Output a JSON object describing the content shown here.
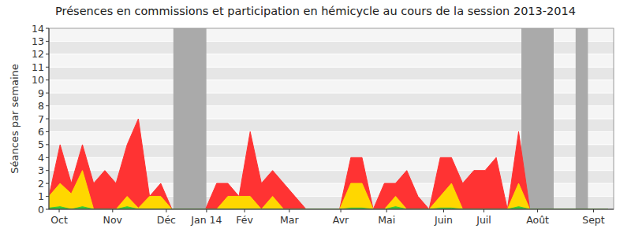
{
  "chart_data": {
    "type": "area",
    "title": "Présences en commissions et participation en hémicycle au cours de la session 2013-2014",
    "y_label": "Séances par semaine",
    "x": [
      0,
      1,
      2,
      3,
      4,
      5,
      6,
      7,
      8,
      9,
      10,
      11,
      12,
      13,
      14,
      15,
      16,
      17,
      18,
      19,
      20,
      21,
      22,
      23,
      24,
      25,
      26,
      27,
      28,
      29,
      30,
      31,
      32,
      33,
      34,
      35,
      36,
      37,
      38,
      39,
      40,
      41,
      42,
      43,
      44,
      45,
      46,
      47,
      48,
      49,
      50
    ],
    "series": [
      {
        "color": "#ff3333",
        "values": [
          1,
          5,
          2,
          5,
          2,
          3,
          2,
          5,
          7,
          1,
          2,
          0,
          0,
          0,
          0,
          2,
          2,
          1,
          6,
          2,
          3,
          2,
          1,
          0,
          0,
          0,
          0,
          4,
          4,
          0,
          2,
          2,
          3,
          1,
          0,
          4,
          4,
          2,
          3,
          3,
          4,
          0,
          6,
          0,
          0,
          0,
          0,
          0,
          0,
          0,
          0
        ]
      },
      {
        "color": "#ffd700",
        "values": [
          1,
          2,
          1.2,
          3,
          0,
          0,
          0,
          1,
          0.1,
          1,
          1,
          0,
          0,
          0,
          0,
          0,
          1,
          1,
          1,
          0,
          1,
          0,
          0,
          0,
          0,
          0,
          0,
          2,
          2,
          0,
          0,
          1,
          0,
          0,
          0,
          1,
          2,
          0,
          0,
          0,
          0,
          0,
          2,
          0,
          0,
          0,
          0,
          0,
          0,
          0,
          0
        ]
      },
      {
        "color": "#33cc33",
        "values": [
          0.1,
          0.2,
          0,
          0.2,
          0,
          0,
          0,
          0.2,
          0,
          0,
          0,
          0,
          0,
          0,
          0,
          0,
          0,
          0,
          0,
          0,
          0,
          0,
          0,
          0,
          0,
          0,
          0,
          0.1,
          0.1,
          0,
          0,
          0.2,
          0,
          0,
          0,
          0.1,
          0.1,
          0,
          0,
          0,
          0,
          0,
          0.2,
          0,
          0,
          0,
          0,
          0,
          0,
          0,
          0
        ]
      }
    ],
    "shaded": [
      [
        11.13,
        14.08
      ],
      [
        42.25,
        45.14
      ],
      [
        47.1,
        48.2
      ]
    ],
    "stacked": false,
    "grid": true,
    "xlim": [
      0,
      50.5
    ],
    "xticks": [
      {
        "value": 0.92,
        "label": "Oct"
      },
      {
        "value": 5.7,
        "label": "Nov"
      },
      {
        "value": 10.5,
        "label": "Déc"
      },
      {
        "value": 14.1,
        "label": "Jan 14"
      },
      {
        "value": 17.5,
        "label": "Fév"
      },
      {
        "value": 21.5,
        "label": "Mar"
      },
      {
        "value": 26.1,
        "label": "Avr"
      },
      {
        "value": 30.2,
        "label": "Mai"
      },
      {
        "value": 35.3,
        "label": "Juin"
      },
      {
        "value": 38.9,
        "label": "Juil"
      },
      {
        "value": 43.7,
        "label": "Août"
      },
      {
        "value": 48.7,
        "label": "Sept"
      }
    ],
    "ylim": [
      0,
      14
    ],
    "yticks": [
      0,
      1,
      2,
      3,
      4,
      5,
      6,
      7,
      8,
      9,
      10,
      11,
      12,
      13,
      14
    ]
  }
}
